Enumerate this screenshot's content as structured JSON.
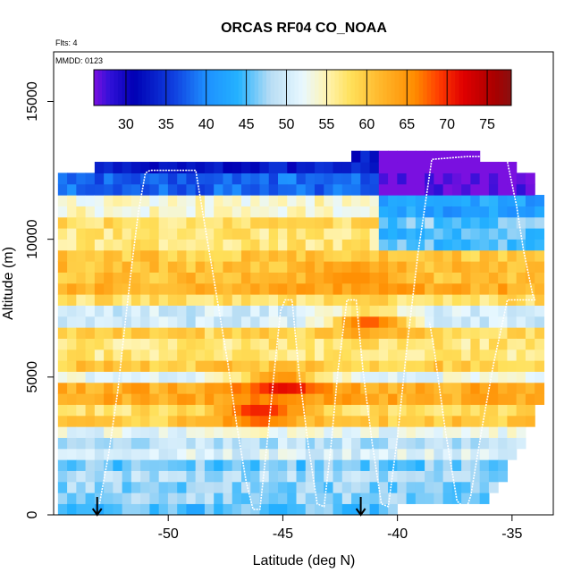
{
  "chart_data": {
    "type": "heatmap",
    "title": "ORCAS RF04 CO_NOAA",
    "xlabel": "Latitude (deg N)",
    "ylabel": "Altitude (m)",
    "flights_note": "Flts: 4",
    "date_note": "MMDD: 0123",
    "xlim": [
      -55,
      -33.2
    ],
    "ylim": [
      0,
      16800
    ],
    "x_ticks": [
      -50,
      -45,
      -40,
      -35
    ],
    "x_tick_labels": [
      "-50",
      "-45",
      "-40",
      "-35"
    ],
    "y_ticks": [
      0,
      5000,
      10000,
      15000
    ],
    "y_tick_labels": [
      "0",
      "5000",
      "10000",
      "15000"
    ],
    "colorbar": {
      "range": [
        26,
        78
      ],
      "ticks": [
        30,
        35,
        40,
        45,
        50,
        55,
        60,
        65,
        70,
        75
      ],
      "tick_labels": [
        "30",
        "35",
        "40",
        "45",
        "50",
        "55",
        "60",
        "65",
        "70",
        "75"
      ]
    },
    "color_stops": [
      {
        "value": 26,
        "color": "#7a10e0"
      },
      {
        "value": 28,
        "color": "#3010d8"
      },
      {
        "value": 31,
        "color": "#0000b4"
      },
      {
        "value": 36,
        "color": "#1040e0"
      },
      {
        "value": 40,
        "color": "#1e90ff"
      },
      {
        "value": 44,
        "color": "#24b2ff"
      },
      {
        "value": 48,
        "color": "#b8ddf4"
      },
      {
        "value": 52,
        "color": "#e8f8ff"
      },
      {
        "value": 55,
        "color": "#fff4b2"
      },
      {
        "value": 58,
        "color": "#ffe05a"
      },
      {
        "value": 62,
        "color": "#ffb428"
      },
      {
        "value": 66,
        "color": "#ff8c00"
      },
      {
        "value": 69,
        "color": "#ff3c00"
      },
      {
        "value": 72,
        "color": "#e00000"
      },
      {
        "value": 76,
        "color": "#a80000"
      },
      {
        "value": 78,
        "color": "#8a1010"
      }
    ],
    "grid": {
      "lat_start": -54.6,
      "lat_end": -33.6,
      "lat_step": 0.4,
      "alt_start": 200,
      "alt_end": 13000,
      "alt_step": 400
    },
    "curtain_top_altitude": [
      [
        -55,
        12400
      ],
      [
        -52,
        12700
      ],
      [
        -49,
        12600
      ],
      [
        -45,
        12800
      ],
      [
        -42,
        13000
      ],
      [
        -39.5,
        13400
      ],
      [
        -37,
        13200
      ],
      [
        -35.5,
        12800
      ],
      [
        -34.2,
        12400
      ],
      [
        -33.6,
        11200
      ]
    ],
    "curtain_bottom_altitude": [
      [
        -55,
        200
      ],
      [
        -40,
        200
      ],
      [
        -37,
        400
      ],
      [
        -36,
        600
      ],
      [
        -34.5,
        2500
      ],
      [
        -33.6,
        4500
      ]
    ],
    "profile_bands": [
      {
        "altitude": 12500,
        "value": 33
      },
      {
        "altitude": 12000,
        "value": 38
      },
      {
        "altitude": 11300,
        "value": 54
      },
      {
        "altitude": 10600,
        "value": 58
      },
      {
        "altitude": 10000,
        "value": 57
      },
      {
        "altitude": 9400,
        "value": 60
      },
      {
        "altitude": 8800,
        "value": 61
      },
      {
        "altitude": 8300,
        "value": 63
      },
      {
        "altitude": 7800,
        "value": 58
      },
      {
        "altitude": 7200,
        "value": 50
      },
      {
        "altitude": 6600,
        "value": 59
      },
      {
        "altitude": 6000,
        "value": 57
      },
      {
        "altitude": 5600,
        "value": 60
      },
      {
        "altitude": 5200,
        "value": 52
      },
      {
        "altitude": 4800,
        "value": 63
      },
      {
        "altitude": 4400,
        "value": 63
      },
      {
        "altitude": 4000,
        "value": 58
      },
      {
        "altitude": 3600,
        "value": 60
      },
      {
        "altitude": 3200,
        "value": 52
      },
      {
        "altitude": 2800,
        "value": 49
      },
      {
        "altitude": 2300,
        "value": 51
      },
      {
        "altitude": 1800,
        "value": 46
      },
      {
        "altitude": 1300,
        "value": 48
      },
      {
        "altitude": 800,
        "value": 47
      },
      {
        "altitude": 300,
        "value": 45
      }
    ],
    "hotspots": [
      {
        "lat": -45,
        "alt": 4700,
        "value": 72
      },
      {
        "lat": -46,
        "alt": 3700,
        "value": 71
      },
      {
        "lat": -41.2,
        "alt": 7000,
        "value": 68
      },
      {
        "lat": -42,
        "alt": 8700,
        "value": 66
      }
    ],
    "flight_track": [
      [
        -53.0,
        400
      ],
      [
        -52.6,
        2200
      ],
      [
        -52.2,
        4500
      ],
      [
        -51.9,
        6800
      ],
      [
        -51.6,
        9000
      ],
      [
        -51.3,
        11000
      ],
      [
        -51.0,
        12400
      ],
      [
        -50.8,
        12500
      ],
      [
        -49.5,
        12500
      ],
      [
        -48.8,
        12500
      ],
      [
        -48.4,
        10500
      ],
      [
        -47.9,
        8000
      ],
      [
        -47.4,
        5500
      ],
      [
        -47.0,
        3200
      ],
      [
        -46.6,
        1200
      ],
      [
        -46.3,
        200
      ],
      [
        -46.0,
        200
      ],
      [
        -45.7,
        2500
      ],
      [
        -45.4,
        5000
      ],
      [
        -45.1,
        7400
      ],
      [
        -44.9,
        7800
      ],
      [
        -44.6,
        7800
      ],
      [
        -44.3,
        5200
      ],
      [
        -43.9,
        2600
      ],
      [
        -43.5,
        400
      ],
      [
        -43.2,
        300
      ],
      [
        -42.9,
        2500
      ],
      [
        -42.6,
        5200
      ],
      [
        -42.2,
        7800
      ],
      [
        -41.8,
        7800
      ],
      [
        -41.5,
        5200
      ],
      [
        -41.1,
        2600
      ],
      [
        -40.7,
        400
      ],
      [
        -40.4,
        300
      ],
      [
        -40.0,
        2800
      ],
      [
        -39.6,
        6000
      ],
      [
        -39.1,
        9500
      ],
      [
        -38.5,
        12900
      ],
      [
        -37.0,
        13000
      ],
      [
        -35.5,
        13000
      ],
      [
        -35.2,
        12800
      ],
      [
        -34.8,
        11200
      ],
      [
        -34.5,
        9600
      ],
      [
        -34.1,
        8000
      ],
      [
        -34.0,
        7800
      ],
      [
        -35.2,
        7800
      ],
      [
        -35.8,
        5500
      ],
      [
        -36.3,
        3200
      ],
      [
        -36.8,
        700
      ],
      [
        -37.0,
        200
      ],
      [
        -37.4,
        500
      ],
      [
        -37.9,
        3000
      ],
      [
        -38.4,
        6000
      ],
      [
        -38.6,
        7000
      ]
    ],
    "arrow_latitudes": [
      -53.1,
      -41.6
    ],
    "styles": {
      "track_color": "#ffffff",
      "axis_color": "#000000",
      "background": "#ffffff"
    }
  }
}
